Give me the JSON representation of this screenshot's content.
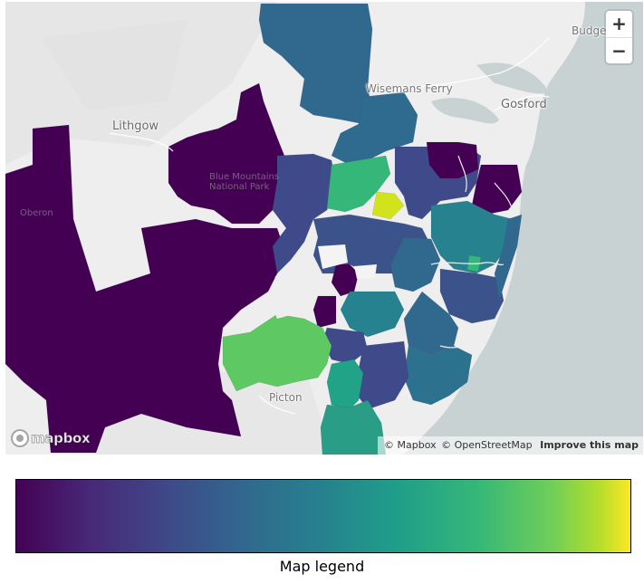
{
  "map": {
    "places": {
      "lithgow": "Lithgow",
      "wisemans_ferry": "Wisemans Ferry",
      "gosford": "Gosford",
      "budgewoi": "Budge",
      "picton": "Picton",
      "oberon": "Oberon",
      "blue_mountains": "Blue Mountains National Park"
    },
    "zoom_in": "+",
    "zoom_out": "−",
    "logo": "mapbox",
    "attribution": {
      "mapbox": "© Mapbox",
      "osm": "© OpenStreetMap",
      "improve": "Improve this map"
    },
    "colors": {
      "land": "#eeeeee",
      "water": "#c9d2d3",
      "low": "#440154",
      "mid": "#21908d",
      "high": "#fde725"
    }
  },
  "legend": {
    "label": "Map legend",
    "colorscale": [
      "#440154",
      "#3e4a89",
      "#26828e",
      "#35b779",
      "#fde725"
    ]
  }
}
